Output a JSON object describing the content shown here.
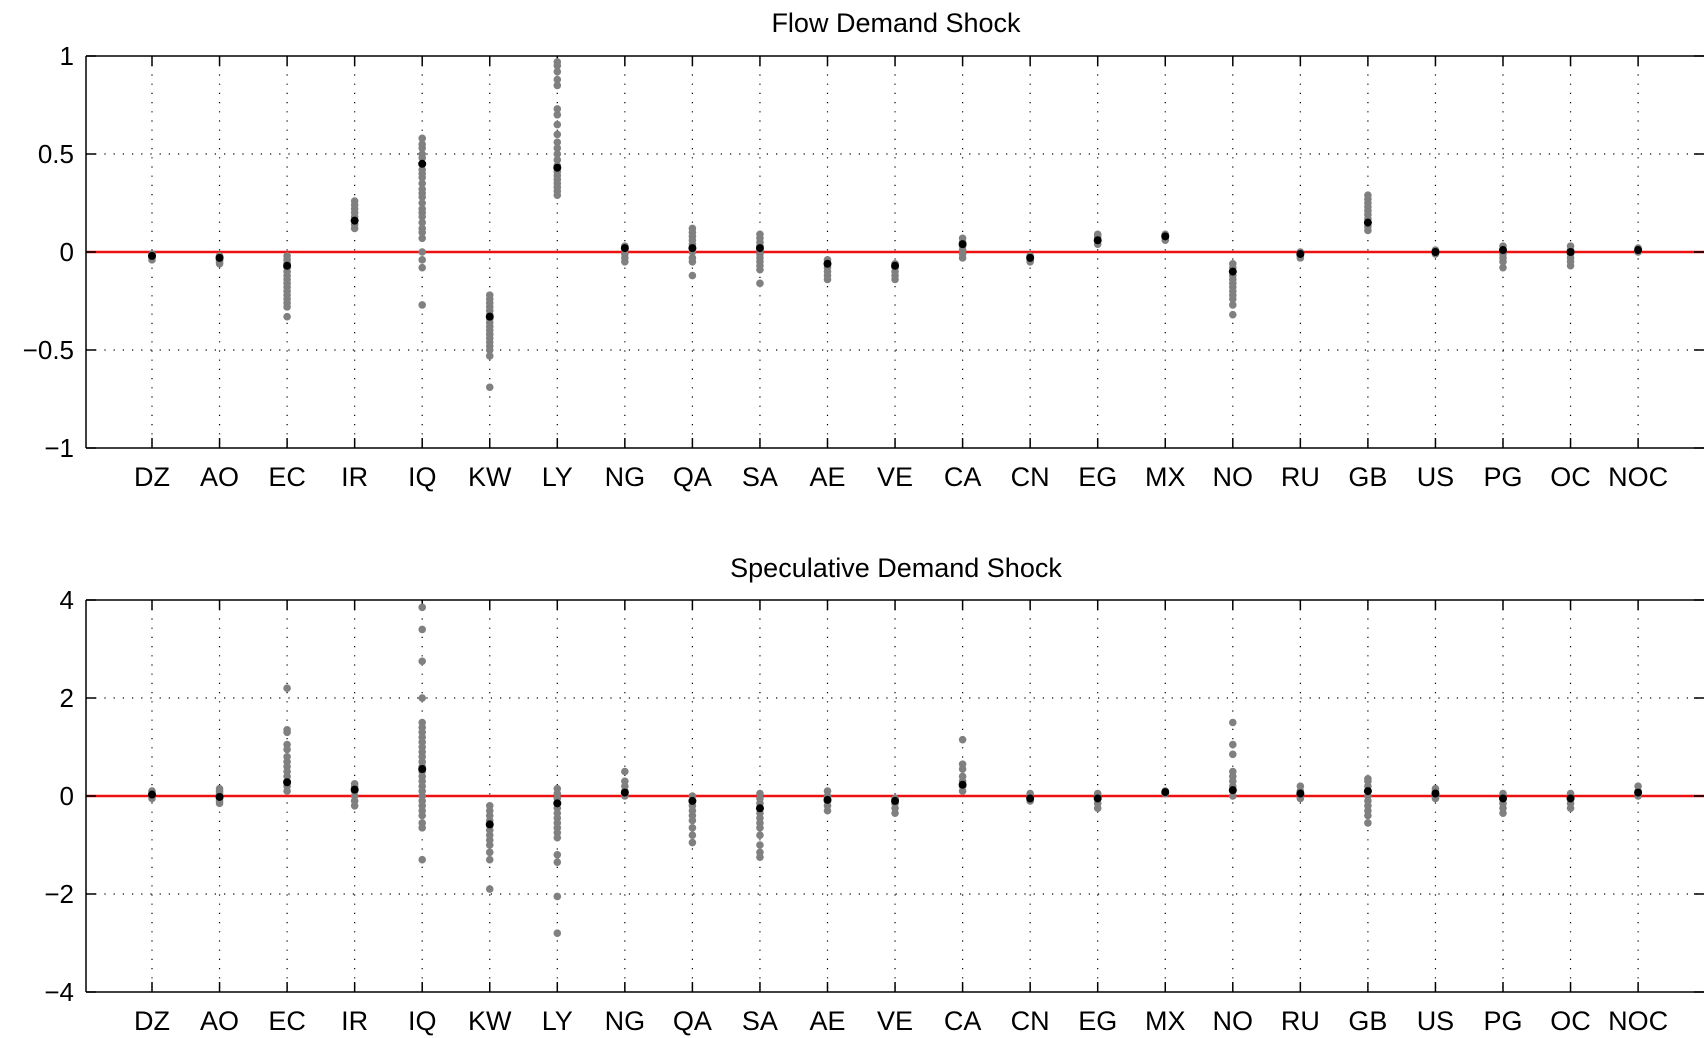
{
  "colors": {
    "draw_point": "#808080",
    "median_point": "#000000",
    "zero_line": "#ee1111",
    "grid": "#000000",
    "axis": "#000000"
  },
  "chart_data": [
    {
      "type": "scatter",
      "title": "Flow Demand Shock",
      "xlabel": "",
      "ylabel": "",
      "ylim": [
        -1,
        1
      ],
      "yticks": [
        1,
        0.5,
        0,
        -0.5,
        -1
      ],
      "ytick_labels": [
        "1",
        "0.5",
        "0",
        "−0.5",
        "−1"
      ],
      "grid": true,
      "reference_line": 0,
      "categories": [
        "DZ",
        "AO",
        "EC",
        "IR",
        "IQ",
        "KW",
        "LY",
        "NG",
        "QA",
        "SA",
        "AE",
        "VE",
        "CA",
        "CN",
        "EG",
        "MX",
        "NO",
        "RU",
        "GB",
        "US",
        "PG",
        "OC",
        "NOC"
      ],
      "series": [
        {
          "role": "draws",
          "values": [
            [
              -0.04,
              -0.03,
              -0.02,
              -0.01
            ],
            [
              -0.06,
              -0.05,
              -0.04,
              -0.03,
              -0.02
            ],
            [
              -0.33,
              -0.28,
              -0.26,
              -0.24,
              -0.22,
              -0.2,
              -0.18,
              -0.16,
              -0.14,
              -0.12,
              -0.1,
              -0.08,
              -0.06,
              -0.04,
              -0.02
            ],
            [
              0.12,
              0.14,
              0.16,
              0.18,
              0.2,
              0.22,
              0.24,
              0.26
            ],
            [
              -0.27,
              -0.08,
              -0.04,
              0.0,
              0.07,
              0.1,
              0.12,
              0.15,
              0.18,
              0.2,
              0.22,
              0.25,
              0.28,
              0.3,
              0.32,
              0.35,
              0.38,
              0.4,
              0.42,
              0.45,
              0.48,
              0.5,
              0.53,
              0.55,
              0.58
            ],
            [
              -0.69,
              -0.53,
              -0.5,
              -0.48,
              -0.46,
              -0.44,
              -0.42,
              -0.4,
              -0.38,
              -0.36,
              -0.34,
              -0.32,
              -0.3,
              -0.28,
              -0.26,
              -0.24,
              -0.22
            ],
            [
              0.29,
              0.31,
              0.33,
              0.35,
              0.37,
              0.39,
              0.41,
              0.44,
              0.47,
              0.5,
              0.53,
              0.56,
              0.6,
              0.65,
              0.7,
              0.73,
              0.85,
              0.88,
              0.92,
              0.95,
              0.97
            ],
            [
              -0.05,
              -0.03,
              -0.01,
              0.01,
              0.02,
              0.03
            ],
            [
              -0.12,
              -0.05,
              -0.03,
              0.0,
              0.02,
              0.04,
              0.06,
              0.08,
              0.1,
              0.12
            ],
            [
              -0.16,
              -0.09,
              -0.07,
              -0.05,
              -0.03,
              -0.01,
              0.01,
              0.03,
              0.05,
              0.07,
              0.09
            ],
            [
              -0.14,
              -0.12,
              -0.1,
              -0.08,
              -0.06,
              -0.04
            ],
            [
              -0.14,
              -0.12,
              -0.1,
              -0.08,
              -0.06
            ],
            [
              -0.03,
              -0.01,
              0.01,
              0.03,
              0.05,
              0.07
            ],
            [
              -0.05,
              -0.04,
              -0.03,
              -0.02
            ],
            [
              0.04,
              0.06,
              0.08,
              0.09
            ],
            [
              0.06,
              0.07,
              0.08,
              0.09
            ],
            [
              -0.32,
              -0.27,
              -0.24,
              -0.22,
              -0.2,
              -0.18,
              -0.16,
              -0.14,
              -0.12,
              -0.1,
              -0.08,
              -0.06
            ],
            [
              -0.03,
              -0.02,
              -0.01,
              0.0
            ],
            [
              0.11,
              0.13,
              0.15,
              0.17,
              0.19,
              0.21,
              0.23,
              0.25,
              0.27,
              0.29
            ],
            [
              -0.01,
              0.0,
              0.01
            ],
            [
              -0.08,
              -0.05,
              -0.03,
              -0.01,
              0.01,
              0.03
            ],
            [
              -0.07,
              -0.05,
              -0.03,
              -0.01,
              0.01,
              0.03
            ],
            [
              0.0,
              0.01,
              0.02
            ]
          ]
        },
        {
          "role": "median",
          "values": [
            -0.02,
            -0.03,
            -0.07,
            0.16,
            0.45,
            -0.33,
            0.43,
            0.02,
            0.02,
            0.02,
            -0.06,
            -0.07,
            0.04,
            -0.03,
            0.06,
            0.08,
            -0.1,
            -0.01,
            0.15,
            0.0,
            0.01,
            0.0,
            0.01
          ]
        }
      ]
    },
    {
      "type": "scatter",
      "title": "Speculative Demand Shock",
      "xlabel": "",
      "ylabel": "",
      "ylim": [
        -4,
        4
      ],
      "yticks": [
        4,
        2,
        0,
        -2,
        -4
      ],
      "ytick_labels": [
        "4",
        "2",
        "0",
        "−2",
        "−4"
      ],
      "grid": true,
      "reference_line": 0,
      "categories": [
        "DZ",
        "AO",
        "EC",
        "IR",
        "IQ",
        "KW",
        "LY",
        "NG",
        "QA",
        "SA",
        "AE",
        "VE",
        "CA",
        "CN",
        "EG",
        "MX",
        "NO",
        "RU",
        "GB",
        "US",
        "PG",
        "OC",
        "NOC"
      ],
      "series": [
        {
          "role": "draws",
          "values": [
            [
              -0.05,
              0.0,
              0.05,
              0.1
            ],
            [
              -0.15,
              -0.1,
              -0.05,
              0.0,
              0.05,
              0.1,
              0.15
            ],
            [
              0.1,
              0.2,
              0.3,
              0.4,
              0.5,
              0.6,
              0.7,
              0.8,
              0.95,
              1.05,
              1.3,
              1.35,
              2.2
            ],
            [
              -0.2,
              -0.1,
              0.0,
              0.1,
              0.2,
              0.25
            ],
            [
              -1.3,
              -0.65,
              -0.55,
              -0.4,
              -0.3,
              -0.2,
              -0.1,
              0.0,
              0.1,
              0.2,
              0.3,
              0.4,
              0.5,
              0.6,
              0.7,
              0.8,
              0.9,
              1.0,
              1.1,
              1.2,
              1.3,
              1.4,
              1.5,
              2.0,
              2.75,
              3.4,
              3.85
            ],
            [
              -1.9,
              -1.3,
              -1.15,
              -1.0,
              -0.9,
              -0.8,
              -0.7,
              -0.6,
              -0.5,
              -0.4,
              -0.3,
              -0.2
            ],
            [
              -2.8,
              -2.05,
              -1.35,
              -1.2,
              -0.85,
              -0.75,
              -0.65,
              -0.55,
              -0.45,
              -0.35,
              -0.25,
              -0.15,
              -0.05,
              0.05,
              0.15
            ],
            [
              0.0,
              0.1,
              0.2,
              0.3,
              0.5
            ],
            [
              -0.95,
              -0.8,
              -0.65,
              -0.5,
              -0.4,
              -0.3,
              -0.2,
              -0.1,
              0.0
            ],
            [
              -1.25,
              -1.15,
              -1.0,
              -0.8,
              -0.65,
              -0.55,
              -0.45,
              -0.35,
              -0.25,
              -0.15,
              -0.05,
              0.05
            ],
            [
              -0.3,
              -0.2,
              -0.1,
              0.0,
              0.1
            ],
            [
              -0.35,
              -0.25,
              -0.15,
              -0.05
            ],
            [
              0.1,
              0.2,
              0.3,
              0.4,
              0.55,
              0.65,
              1.15
            ],
            [
              -0.1,
              -0.05,
              0.0,
              0.05
            ],
            [
              -0.25,
              -0.15,
              -0.05,
              0.0,
              0.05
            ],
            [
              0.05,
              0.1
            ],
            [
              0.0,
              0.1,
              0.2,
              0.3,
              0.4,
              0.5,
              0.85,
              1.05,
              1.5
            ],
            [
              -0.05,
              0.0,
              0.05,
              0.1,
              0.2
            ],
            [
              -0.55,
              -0.4,
              -0.3,
              -0.2,
              -0.1,
              0.0,
              0.1,
              0.2,
              0.3,
              0.35
            ],
            [
              -0.05,
              0.0,
              0.05,
              0.1,
              0.15
            ],
            [
              -0.35,
              -0.25,
              -0.15,
              -0.05,
              0.05
            ],
            [
              -0.25,
              -0.15,
              -0.05,
              0.05
            ],
            [
              0.0,
              0.1,
              0.2
            ]
          ]
        },
        {
          "role": "median",
          "values": [
            0.03,
            -0.02,
            0.28,
            0.13,
            0.55,
            -0.58,
            -0.15,
            0.07,
            -0.1,
            -0.25,
            -0.08,
            -0.1,
            0.23,
            -0.05,
            -0.05,
            0.08,
            0.12,
            0.05,
            0.1,
            0.05,
            -0.05,
            -0.05,
            0.07
          ]
        }
      ]
    }
  ]
}
